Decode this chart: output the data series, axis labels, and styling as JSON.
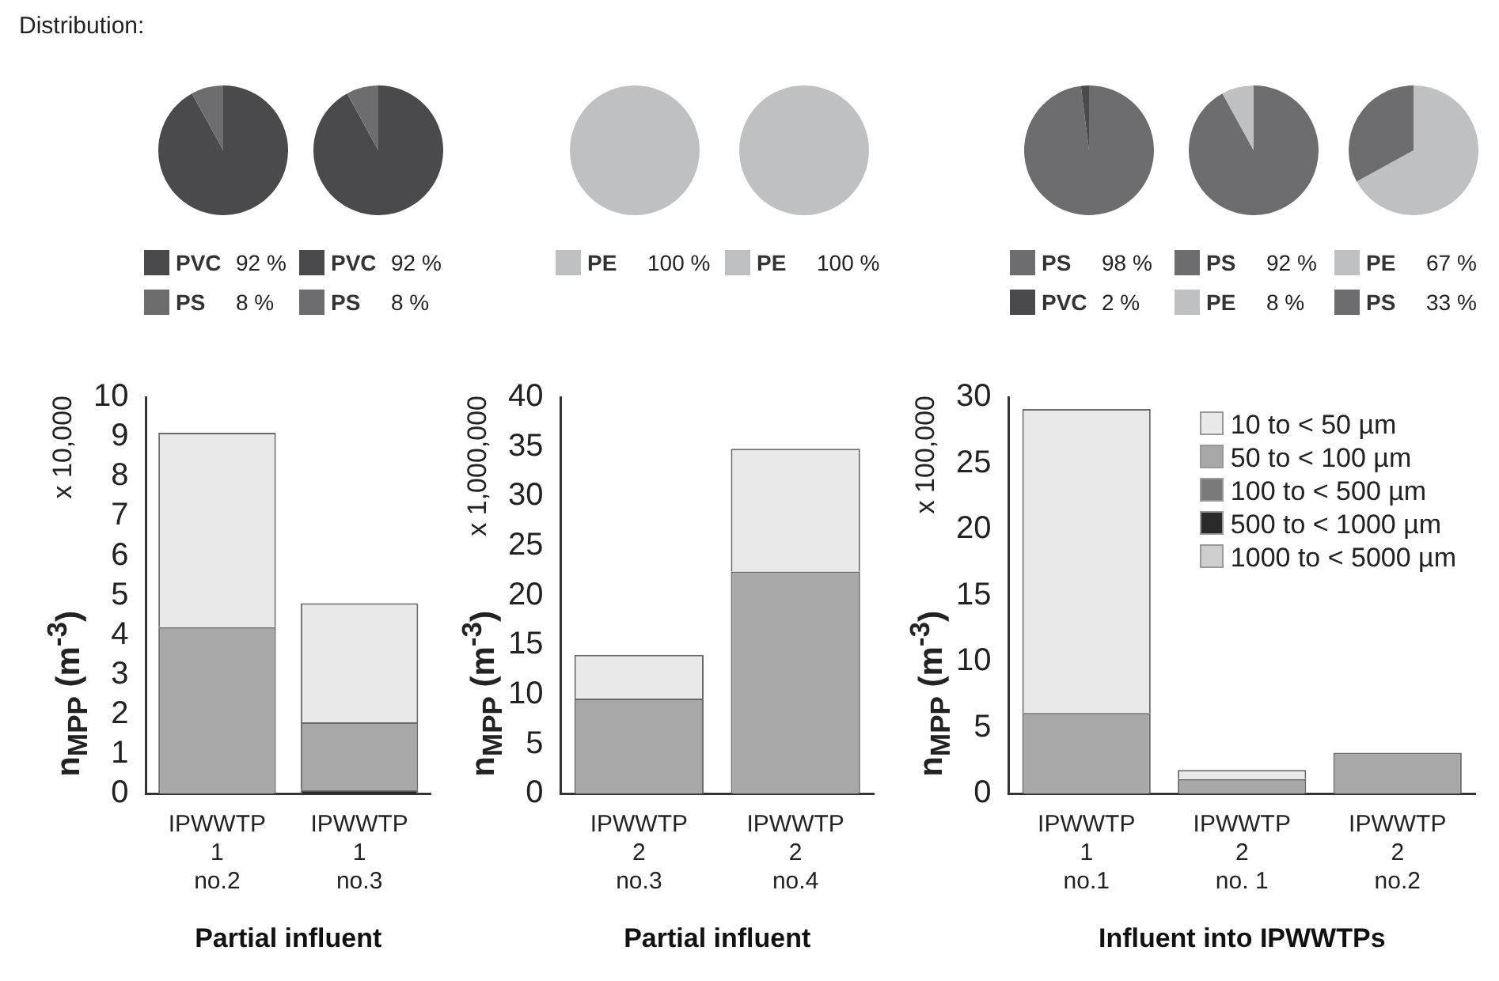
{
  "chart_data": [
    {
      "type": "pie",
      "annotations": [
        "Distribution:"
      ],
      "categories": [
        "PVC",
        "PS"
      ],
      "values": [
        92,
        8
      ],
      "colors": [
        "#4a4a4c",
        "#6d6d6f"
      ],
      "value_labels": [
        "92 %",
        "8 %"
      ],
      "legend": "bottom"
    },
    {
      "type": "pie",
      "categories": [
        "PVC",
        "PS"
      ],
      "values": [
        92,
        8
      ],
      "colors": [
        "#4a4a4c",
        "#6d6d6f"
      ],
      "value_labels": [
        "92 %",
        "8 %"
      ],
      "legend": "bottom"
    },
    {
      "type": "pie",
      "categories": [
        "PE"
      ],
      "values": [
        100
      ],
      "colors": [
        "#bfc0c2"
      ],
      "value_labels": [
        "100 %"
      ],
      "legend": "bottom"
    },
    {
      "type": "pie",
      "categories": [
        "PE"
      ],
      "values": [
        100
      ],
      "colors": [
        "#bfc0c2"
      ],
      "value_labels": [
        "100 %"
      ],
      "legend": "bottom"
    },
    {
      "type": "pie",
      "categories": [
        "PS",
        "PVC"
      ],
      "values": [
        98,
        2
      ],
      "colors": [
        "#6d6d6f",
        "#4a4a4c"
      ],
      "value_labels": [
        "98 %",
        "2 %"
      ],
      "legend": "bottom"
    },
    {
      "type": "pie",
      "categories": [
        "PS",
        "PE"
      ],
      "values": [
        92,
        8
      ],
      "colors": [
        "#6d6d6f",
        "#bfc0c2"
      ],
      "value_labels": [
        "92 %",
        "8 %"
      ],
      "legend": "bottom"
    },
    {
      "type": "pie",
      "categories": [
        "PE",
        "PS"
      ],
      "values": [
        67,
        33
      ],
      "colors": [
        "#bfc0c2",
        "#6d6d6f"
      ],
      "value_labels": [
        "67 %",
        "33  %"
      ],
      "legend": "bottom"
    },
    {
      "type": "bar",
      "stacked": true,
      "categories": [
        "IPWWTP\n1\nno.2",
        "IPWWTP\n1\nno.3"
      ],
      "ylabel": "n$_{MPP}$ (m$^{-3}$)",
      "xlabel": "Partial influent",
      "annotations": [
        "x 10,000"
      ],
      "ylim": [
        0,
        10
      ],
      "yticks": [
        0,
        1,
        2,
        3,
        4,
        5,
        6,
        7,
        8,
        9,
        10
      ],
      "series": [
        {
          "color": "#2a2a2a",
          "values": [
            0,
            0.1
          ]
        },
        {
          "color": "#a8a8a8",
          "values": [
            4.2,
            1.7
          ]
        },
        {
          "color": "#e9e9e9",
          "values": [
            4.9,
            3.0
          ]
        }
      ]
    },
    {
      "type": "bar",
      "stacked": true,
      "categories": [
        "IPWWTP\n2\nno.3",
        "IPWWTP\n2\nno.4"
      ],
      "ylabel": "n$_{MPP}$ (m$^{-3}$)",
      "xlabel": "Partial influent",
      "annotations": [
        "x 1,000,000"
      ],
      "ylim": [
        0,
        40
      ],
      "yticks": [
        0,
        5,
        10,
        15,
        20,
        25,
        30,
        35,
        40
      ],
      "series": [
        {
          "color": "#a8a8a8",
          "values": [
            9.6,
            22.4
          ]
        },
        {
          "color": "#e9e9e9",
          "values": [
            4.4,
            12.4
          ]
        }
      ]
    },
    {
      "type": "bar",
      "stacked": true,
      "categories": [
        "IPWWTP\n1\nno.1",
        "IPWWTP\n2\nno. 1",
        "IPWWTP\n2\nno.2"
      ],
      "ylabel": "n$_{MPP}$ (m$^{-3}$)",
      "xlabel": "Influent into IPWWTPs",
      "annotations": [
        "x 100,000"
      ],
      "ylim": [
        0,
        30
      ],
      "yticks": [
        0,
        5,
        10,
        15,
        20,
        25,
        30
      ],
      "legend": "top right",
      "series": [
        {
          "name": "1000 to < 5000 µm",
          "color": "#cfcfcf",
          "values": [
            0,
            0,
            0
          ]
        },
        {
          "name": "500 to < 1000 µm",
          "color": "#2a2a2a",
          "values": [
            null,
            0,
            0
          ]
        },
        {
          "name": "100 to < 500 µm",
          "color": "#7a7a7a",
          "values": [
            0,
            0,
            0
          ]
        },
        {
          "name": "50 to < 100 µm",
          "color": "#a8a8a8",
          "values": [
            6.1,
            1.1,
            3.1
          ]
        },
        {
          "name": "10 to < 50 µm",
          "color": "#e9e9e9",
          "values": [
            23.0,
            0.7,
            0
          ]
        }
      ]
    }
  ]
}
